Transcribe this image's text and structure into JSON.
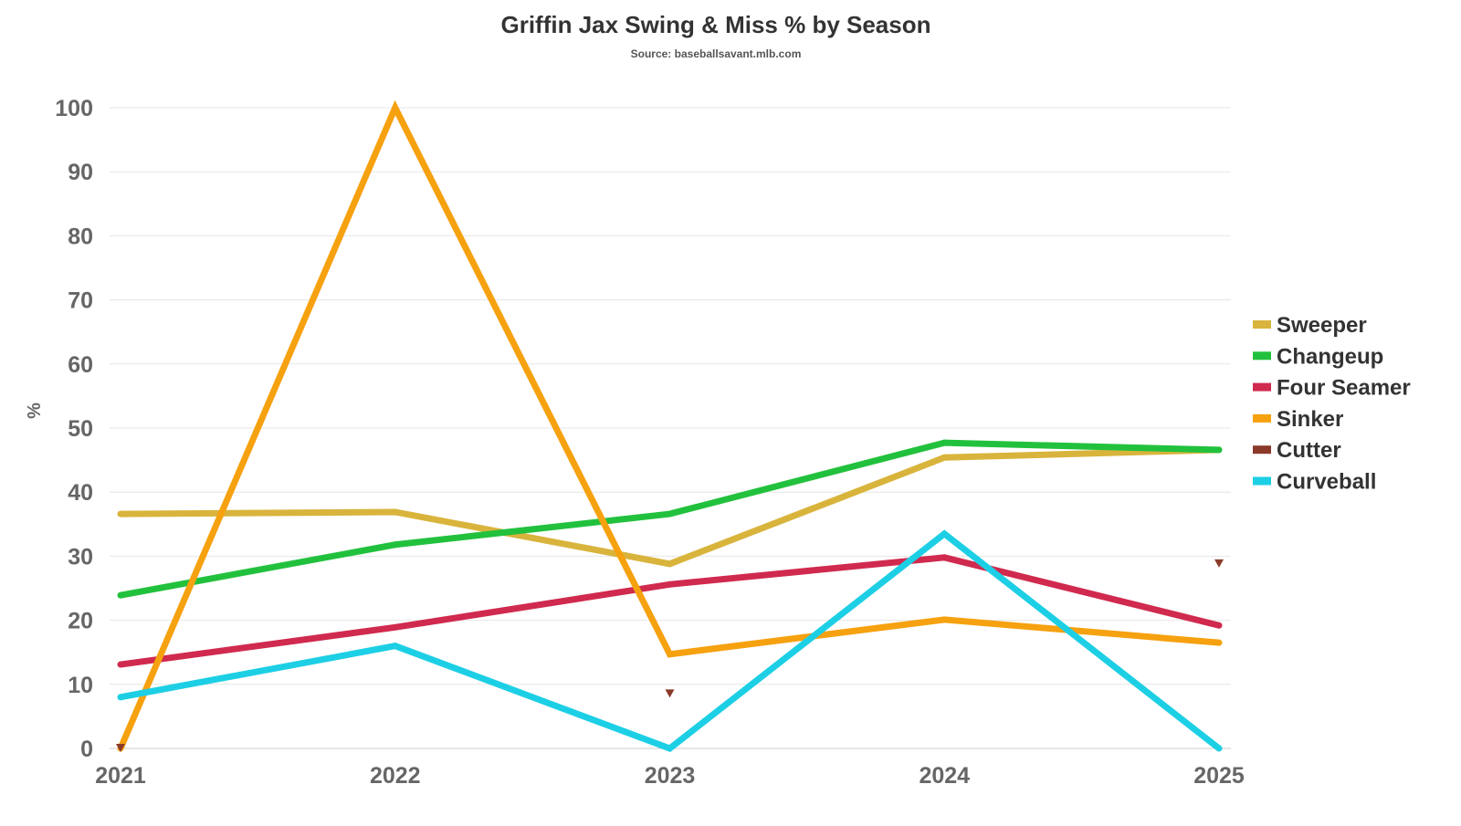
{
  "chart_data": {
    "type": "line",
    "title": "Griffin Jax Swing & Miss % by Season",
    "subtitle": "Source: baseballsavant.mlb.com",
    "xlabel": "",
    "ylabel": "%",
    "x": [
      "2021",
      "2022",
      "2023",
      "2024",
      "2025"
    ],
    "ylim": [
      0,
      100
    ],
    "yticks": [
      0,
      10,
      20,
      30,
      40,
      50,
      60,
      70,
      80,
      90,
      100
    ],
    "grid": true,
    "legend_placement": "right",
    "series": [
      {
        "name": "Sweeper",
        "color": "#d9b43c",
        "values": [
          36.6,
          36.9,
          28.8,
          45.4,
          46.6
        ],
        "style": "line"
      },
      {
        "name": "Changeup",
        "color": "#22c13d",
        "values": [
          23.9,
          31.8,
          36.6,
          47.7,
          46.6
        ],
        "style": "line"
      },
      {
        "name": "Four Seamer",
        "color": "#d02a4e",
        "values": [
          13.1,
          18.9,
          25.6,
          29.8,
          19.2
        ],
        "style": "line"
      },
      {
        "name": "Sinker",
        "color": "#f6a10f",
        "values": [
          0,
          100,
          14.7,
          20.1,
          16.5
        ],
        "style": "line"
      },
      {
        "name": "Cutter",
        "color": "#8b3a2a",
        "values": [
          0,
          null,
          8.5,
          null,
          28.8
        ],
        "style": "marker"
      },
      {
        "name": "Curveball",
        "color": "#1dcfe5",
        "values": [
          8.0,
          16.0,
          0,
          33.5,
          0
        ],
        "style": "line"
      }
    ]
  }
}
